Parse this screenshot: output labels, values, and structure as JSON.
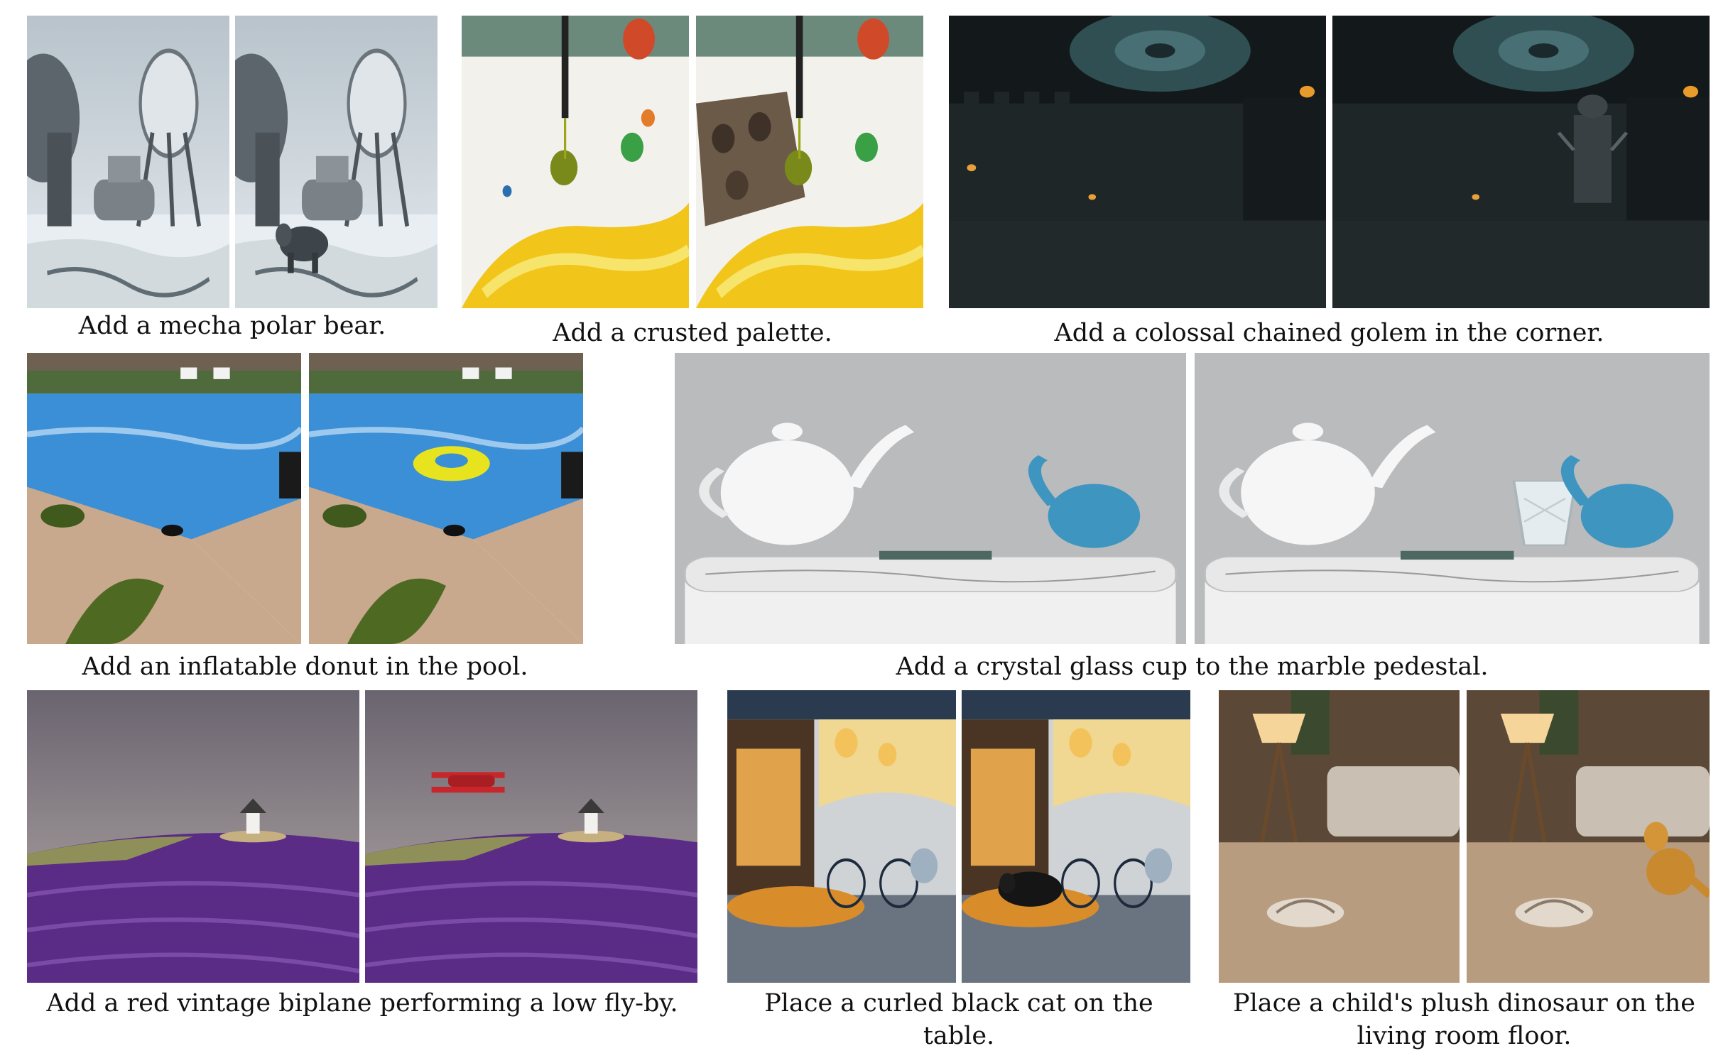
{
  "examples": [
    {
      "id": "polar-bear",
      "caption": "Add a mecha polar bear.",
      "before": {
        "scene": "snowy radar station with two satellite dishes"
      },
      "after": {
        "scene": "same station with a mechanical polar bear walking in the snow"
      }
    },
    {
      "id": "palette",
      "caption": "Add a crusted palette.",
      "before": {
        "scene": "brush dripping paint onto a paint-splattered surface"
      },
      "after": {
        "scene": "same scene with a crusted paint palette added"
      }
    },
    {
      "id": "golem",
      "caption": "Add a colossal chained golem in the corner.",
      "before": {
        "scene": "dark castle courtyard under a swirling storm vortex"
      },
      "after": {
        "scene": "same courtyard with a chained golem in the corner"
      }
    },
    {
      "id": "donut",
      "caption": "Add an inflatable donut in the pool.",
      "before": {
        "scene": "backyard swimming pool with hose and sunglasses"
      },
      "after": {
        "scene": "same pool with a yellow inflatable ring floating"
      }
    },
    {
      "id": "glass-cup",
      "caption": "Add a crystal glass cup to the marble pedestal.",
      "before": {
        "scene": "white teapot and blue glass elephant on a marble pedestal"
      },
      "after": {
        "scene": "same pedestal with a crystal glass cup added"
      }
    },
    {
      "id": "biplane",
      "caption": "Add a red vintage biplane performing a low fly-by.",
      "before": {
        "scene": "lavender field with a windmill on a hill"
      },
      "after": {
        "scene": "same field with a red biplane flying low"
      }
    },
    {
      "id": "cat",
      "caption": "Place a curled black cat on the table.",
      "before": {
        "scene": "painted cafe street with lamps, bicycle and table"
      },
      "after": {
        "scene": "same street with a curled black cat on the table"
      }
    },
    {
      "id": "dinosaur",
      "caption": "Place a child's plush dinosaur on the living room floor.",
      "before": {
        "scene": "living room carpet with lamp, sofa and slippers"
      },
      "after": {
        "scene": "same room with a plush dinosaur on the floor"
      }
    }
  ],
  "colors": {
    "snow_sky": "#c9d2d8",
    "pool_blue": "#3b8fd6",
    "lavender": "#5b2c86",
    "castle_teal": "#2f4f53",
    "donut_yellow": "#e7e41f",
    "biplane_red": "#c8262b",
    "cat_black": "#151515"
  }
}
